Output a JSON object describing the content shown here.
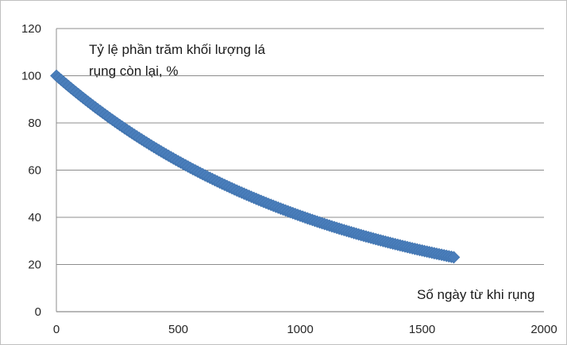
{
  "chart_data": {
    "type": "scatter",
    "title": "",
    "ylabel_lines": [
      "Tỷ lệ phần trăm khối lượng lá",
      "rụng còn lại, %"
    ],
    "xlabel": "Số ngày từ khi rụng",
    "xlim": [
      0,
      2000
    ],
    "ylim": [
      0,
      120
    ],
    "x_ticks": [
      "0",
      "500",
      "1000",
      "1500",
      "2000"
    ],
    "y_ticks": [
      "0",
      "20",
      "40",
      "60",
      "80",
      "100",
      "120"
    ],
    "grid": "horizontal",
    "legend": "none",
    "marker": "diamond",
    "marker_color": "#4a7ebb",
    "series": [
      {
        "x_start": 0,
        "x_end": 1630,
        "x_step": 10,
        "decay_rate_per_day": 0.0009,
        "y_start": 100,
        "note_values": [
          {
            "x": 0,
            "y": 100
          },
          {
            "x": 200,
            "y": 78
          },
          {
            "x": 500,
            "y": 56
          },
          {
            "x": 800,
            "y": 43
          },
          {
            "x": 1000,
            "y": 36
          },
          {
            "x": 1300,
            "y": 29
          },
          {
            "x": 1630,
            "y": 23
          }
        ]
      }
    ]
  }
}
